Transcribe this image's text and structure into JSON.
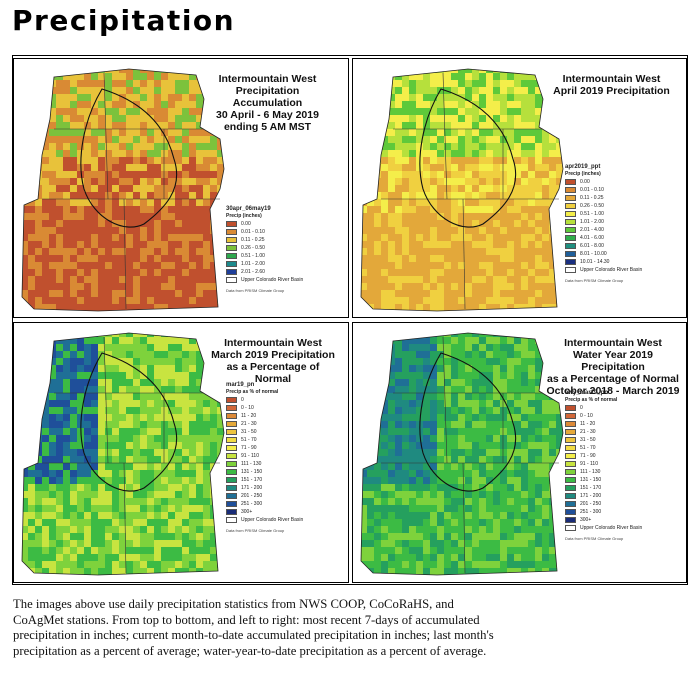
{
  "page": {
    "title": "Precipitation",
    "caption": [
      "The images above use daily precipitation statistics from NWS COOP, CoCoRaHS, and",
      "CoAgMet stations. From top to bottom, and left to right: most recent 7-days of accumulated",
      "precipitation in inches; current month-to-date accumulated precipitation in inches; last month's",
      "precipitation as a percent of average; water-year-to-date precipitation as a percent of average."
    ]
  },
  "panels": [
    {
      "title": [
        "Intermountain West",
        "Precipitation Accumulation",
        "30 April - 6 May 2019",
        "ending 5 AM MST"
      ],
      "legend_title": "30apr_06may19",
      "legend_subtitle": "Precip (inches)",
      "classes": [
        {
          "label": "0.00",
          "color": "#c0502e"
        },
        {
          "label": "0.01 - 0.10",
          "color": "#d98a34"
        },
        {
          "label": "0.11 - 0.25",
          "color": "#e8c23a"
        },
        {
          "label": "0.26 - 0.50",
          "color": "#7cc23c"
        },
        {
          "label": "0.51 - 1.00",
          "color": "#2ea84e"
        },
        {
          "label": "1.01 - 2.00",
          "color": "#1d8a8c"
        },
        {
          "label": "2.01 - 2.60",
          "color": "#1f3f9a"
        }
      ],
      "basin_label": "Upper Colorado River Basin",
      "credit": "Data from PRISM Climate Group",
      "palette": [
        "#c0502e",
        "#d98a34",
        "#e8c23a",
        "#7cc23c",
        "#2ea84e",
        "#1d8a8c"
      ]
    },
    {
      "title": [
        "Intermountain West",
        "April 2019 Precipitation"
      ],
      "legend_title": "apr2019_ppt",
      "legend_subtitle": "Precip (inches)",
      "classes": [
        {
          "label": "0.00",
          "color": "#c0502e"
        },
        {
          "label": "0.01 - 0.10",
          "color": "#d98a34"
        },
        {
          "label": "0.11 - 0.25",
          "color": "#e3a83a"
        },
        {
          "label": "0.26 - 0.50",
          "color": "#f0d040"
        },
        {
          "label": "0.51 - 1.00",
          "color": "#f4ee4a"
        },
        {
          "label": "1.01 - 2.00",
          "color": "#b6e03c"
        },
        {
          "label": "2.01 - 4.00",
          "color": "#5ec93a"
        },
        {
          "label": "4.01 - 6.00",
          "color": "#2fae4b"
        },
        {
          "label": "6.01 - 8.00",
          "color": "#1f8f80"
        },
        {
          "label": "8.01 - 10.00",
          "color": "#1f5f9a"
        },
        {
          "label": "10.01 - 14.30",
          "color": "#1a2f80"
        }
      ],
      "basin_label": "Upper Colorado River Basin",
      "credit": "Data from PRISM Climate Group",
      "palette": [
        "#e3a83a",
        "#f0d040",
        "#f4ee4a",
        "#b6e03c",
        "#5ec93a",
        "#2fae4b"
      ]
    },
    {
      "title": [
        "Intermountain West",
        "March 2019 Precipitation",
        "as a Percentage of Normal"
      ],
      "legend_title": "mar19_pn",
      "legend_subtitle": "Precip as % of normal",
      "classes": [
        {
          "label": "0",
          "color": "#c0502e"
        },
        {
          "label": "0 - 10",
          "color": "#d2683a"
        },
        {
          "label": "11 - 20",
          "color": "#dd8a38"
        },
        {
          "label": "21 - 30",
          "color": "#e5a93a"
        },
        {
          "label": "31 - 50",
          "color": "#edc43e"
        },
        {
          "label": "51 - 70",
          "color": "#f2dc44"
        },
        {
          "label": "71 - 90",
          "color": "#f4ee4a"
        },
        {
          "label": "91 - 110",
          "color": "#c8e440"
        },
        {
          "label": "111 - 130",
          "color": "#7ed23c"
        },
        {
          "label": "131 - 150",
          "color": "#3cbb44"
        },
        {
          "label": "151 - 170",
          "color": "#25a05e"
        },
        {
          "label": "171 - 200",
          "color": "#1f8a80"
        },
        {
          "label": "201 - 250",
          "color": "#1f6f96"
        },
        {
          "label": "251 - 300",
          "color": "#1f4f9a"
        },
        {
          "label": "300+",
          "color": "#1a2d78"
        }
      ],
      "basin_label": "Upper Colorado River Basin",
      "credit": "Data from PRISM Climate Group",
      "palette": [
        "#f4ee4a",
        "#c8e440",
        "#7ed23c",
        "#3cbb44",
        "#1f6f96",
        "#1f4f9a"
      ]
    },
    {
      "title": [
        "Intermountain West",
        "Water Year 2019 Precipitation",
        "as a Percentage of Normal",
        "October 2018 - March 2019"
      ],
      "legend_title": "awy_mar19_pn",
      "legend_subtitle": "Precip as % of normal",
      "classes": [
        {
          "label": "0",
          "color": "#c0502e"
        },
        {
          "label": "0 - 10",
          "color": "#d2683a"
        },
        {
          "label": "11 - 20",
          "color": "#dd8a38"
        },
        {
          "label": "21 - 30",
          "color": "#e5a93a"
        },
        {
          "label": "31 - 50",
          "color": "#edc43e"
        },
        {
          "label": "51 - 70",
          "color": "#f2dc44"
        },
        {
          "label": "71 - 90",
          "color": "#f4ee4a"
        },
        {
          "label": "91 - 110",
          "color": "#c8e440"
        },
        {
          "label": "111 - 130",
          "color": "#7ed23c"
        },
        {
          "label": "131 - 150",
          "color": "#3cbb44"
        },
        {
          "label": "151 - 170",
          "color": "#25a05e"
        },
        {
          "label": "171 - 200",
          "color": "#1f8a80"
        },
        {
          "label": "201 - 250",
          "color": "#1f6f96"
        },
        {
          "label": "251 - 300",
          "color": "#1f4f9a"
        },
        {
          "label": "300+",
          "color": "#1a2d78"
        }
      ],
      "basin_label": "Upper Colorado River Basin",
      "credit": "Data from PRISM Climate Group",
      "palette": [
        "#c8e440",
        "#7ed23c",
        "#3cbb44",
        "#25a05e",
        "#1f8a80",
        "#1f6f96"
      ]
    }
  ]
}
